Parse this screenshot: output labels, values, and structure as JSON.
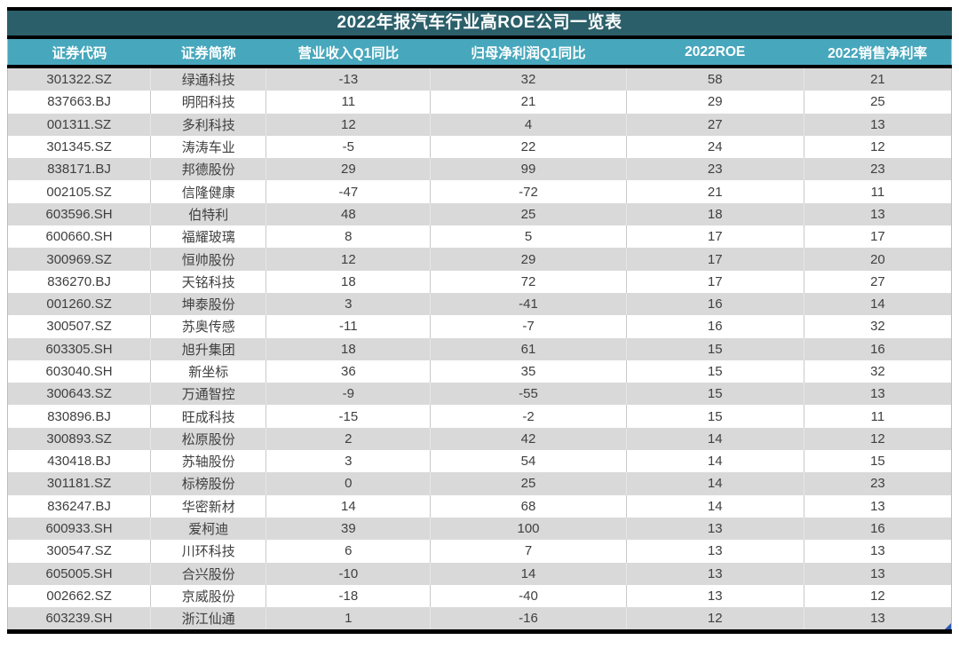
{
  "chart_data": {
    "type": "table",
    "title": "2022年报汽车行业高ROE公司一览表",
    "columns": [
      "证券代码",
      "证券简称",
      "营业收入Q1同比",
      "归母净利润Q1同比",
      "2022ROE",
      "2022销售净利率"
    ],
    "rows": [
      [
        "301322.SZ",
        "绿通科技",
        "-13",
        "32",
        "58",
        "21"
      ],
      [
        "837663.BJ",
        "明阳科技",
        "11",
        "21",
        "29",
        "25"
      ],
      [
        "001311.SZ",
        "多利科技",
        "12",
        "4",
        "27",
        "13"
      ],
      [
        "301345.SZ",
        "涛涛车业",
        "-5",
        "22",
        "24",
        "12"
      ],
      [
        "838171.BJ",
        "邦德股份",
        "29",
        "99",
        "23",
        "23"
      ],
      [
        "002105.SZ",
        "信隆健康",
        "-47",
        "-72",
        "21",
        "11"
      ],
      [
        "603596.SH",
        "伯特利",
        "48",
        "25",
        "18",
        "13"
      ],
      [
        "600660.SH",
        "福耀玻璃",
        "8",
        "5",
        "17",
        "17"
      ],
      [
        "300969.SZ",
        "恒帅股份",
        "12",
        "29",
        "17",
        "20"
      ],
      [
        "836270.BJ",
        "天铭科技",
        "18",
        "72",
        "17",
        "27"
      ],
      [
        "001260.SZ",
        "坤泰股份",
        "3",
        "-41",
        "16",
        "14"
      ],
      [
        "300507.SZ",
        "苏奥传感",
        "-11",
        "-7",
        "16",
        "32"
      ],
      [
        "603305.SH",
        "旭升集团",
        "18",
        "61",
        "15",
        "16"
      ],
      [
        "603040.SH",
        "新坐标",
        "36",
        "35",
        "15",
        "32"
      ],
      [
        "300643.SZ",
        "万通智控",
        "-9",
        "-55",
        "15",
        "13"
      ],
      [
        "830896.BJ",
        "旺成科技",
        "-15",
        "-2",
        "15",
        "11"
      ],
      [
        "300893.SZ",
        "松原股份",
        "2",
        "42",
        "14",
        "12"
      ],
      [
        "430418.BJ",
        "苏轴股份",
        "3",
        "54",
        "14",
        "15"
      ],
      [
        "301181.SZ",
        "标榜股份",
        "0",
        "25",
        "14",
        "23"
      ],
      [
        "836247.BJ",
        "华密新材",
        "14",
        "68",
        "14",
        "13"
      ],
      [
        "600933.SH",
        "爱柯迪",
        "39",
        "100",
        "13",
        "16"
      ],
      [
        "300547.SZ",
        "川环科技",
        "6",
        "7",
        "13",
        "13"
      ],
      [
        "605005.SH",
        "合兴股份",
        "-10",
        "14",
        "13",
        "13"
      ],
      [
        "002662.SZ",
        "京威股份",
        "-18",
        "-40",
        "13",
        "12"
      ],
      [
        "603239.SH",
        "浙江仙通",
        "1",
        "-16",
        "12",
        "13"
      ]
    ],
    "layout": {
      "striped_rows": "odd-gray",
      "header_position": "top",
      "grid": "vertical-separators"
    }
  },
  "colors": {
    "title_bg": "#2b5f6a",
    "header_bg": "#47a7bc",
    "header_text": "#ffffff",
    "row_bg": "#ffffff",
    "row_alt_bg": "#d9d9d9",
    "text": "#3f3f3f",
    "border_black": "#000000",
    "corner_marker": "#2f5bb7"
  }
}
